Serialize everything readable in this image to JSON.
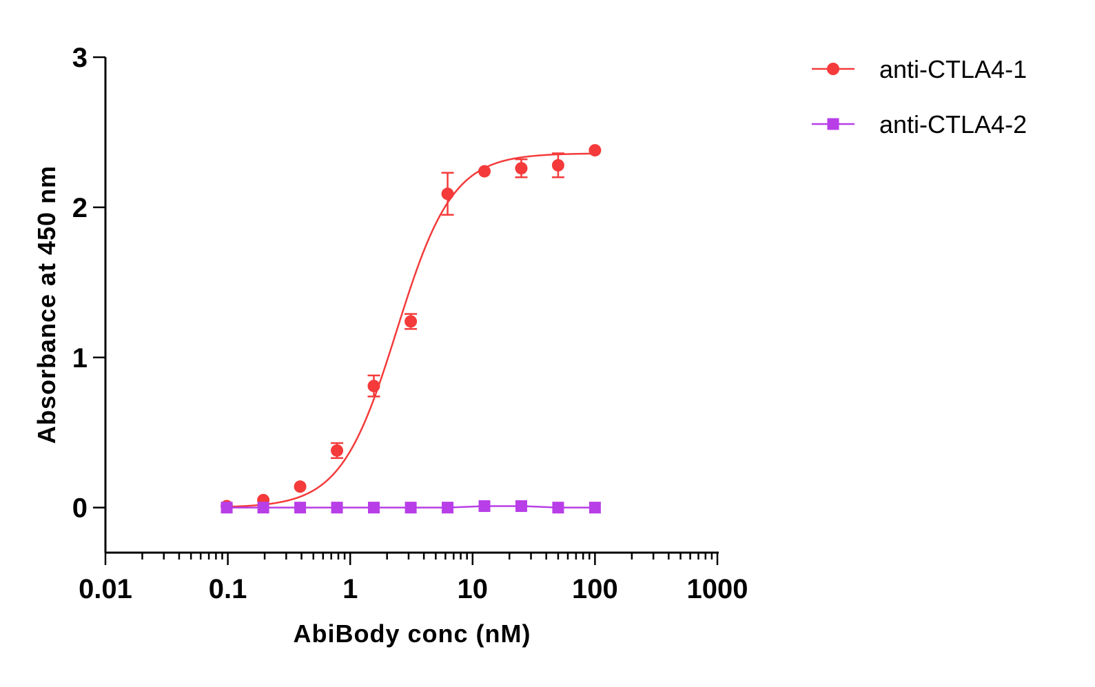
{
  "chart_data": {
    "type": "scatter",
    "xlabel": "AbiBody conc (nM)",
    "ylabel": "Absorbance at 450 nm",
    "xscale": "log",
    "xlim": [
      0.01,
      1000
    ],
    "ylim": [
      -0.3,
      3
    ],
    "x_ticks": [
      "0.01",
      "0.1",
      "1",
      "10",
      "100",
      "1000"
    ],
    "y_ticks": [
      "0",
      "1",
      "2",
      "3"
    ],
    "grid": false,
    "legend_position": "top-right",
    "series": [
      {
        "name": "anti-CTLA4-1",
        "color": "#f43a3a",
        "marker": "circle",
        "x": [
          0.098,
          0.195,
          0.39,
          0.78,
          1.56,
          3.125,
          6.25,
          12.5,
          25,
          50,
          100
        ],
        "y": [
          0.01,
          0.05,
          0.14,
          0.38,
          0.81,
          1.24,
          2.09,
          2.24,
          2.26,
          2.28,
          2.38
        ],
        "error": [
          0.0,
          0.0,
          0.0,
          0.05,
          0.07,
          0.05,
          0.14,
          0.0,
          0.06,
          0.08,
          0.0
        ],
        "fit": {
          "bottom": 0.0,
          "top": 2.36,
          "ec50": 2.4,
          "hill": 1.9
        }
      },
      {
        "name": "anti-CTLA4-2",
        "color": "#b83ee8",
        "marker": "square",
        "x": [
          0.098,
          0.195,
          0.39,
          0.78,
          1.56,
          3.125,
          6.25,
          12.5,
          25,
          50,
          100
        ],
        "y": [
          0.0,
          0.0,
          0.0,
          0.0,
          0.0,
          0.0,
          0.0,
          0.01,
          0.01,
          0.0,
          0.0
        ],
        "error": [
          0,
          0,
          0,
          0,
          0,
          0,
          0,
          0,
          0,
          0,
          0
        ]
      }
    ]
  }
}
